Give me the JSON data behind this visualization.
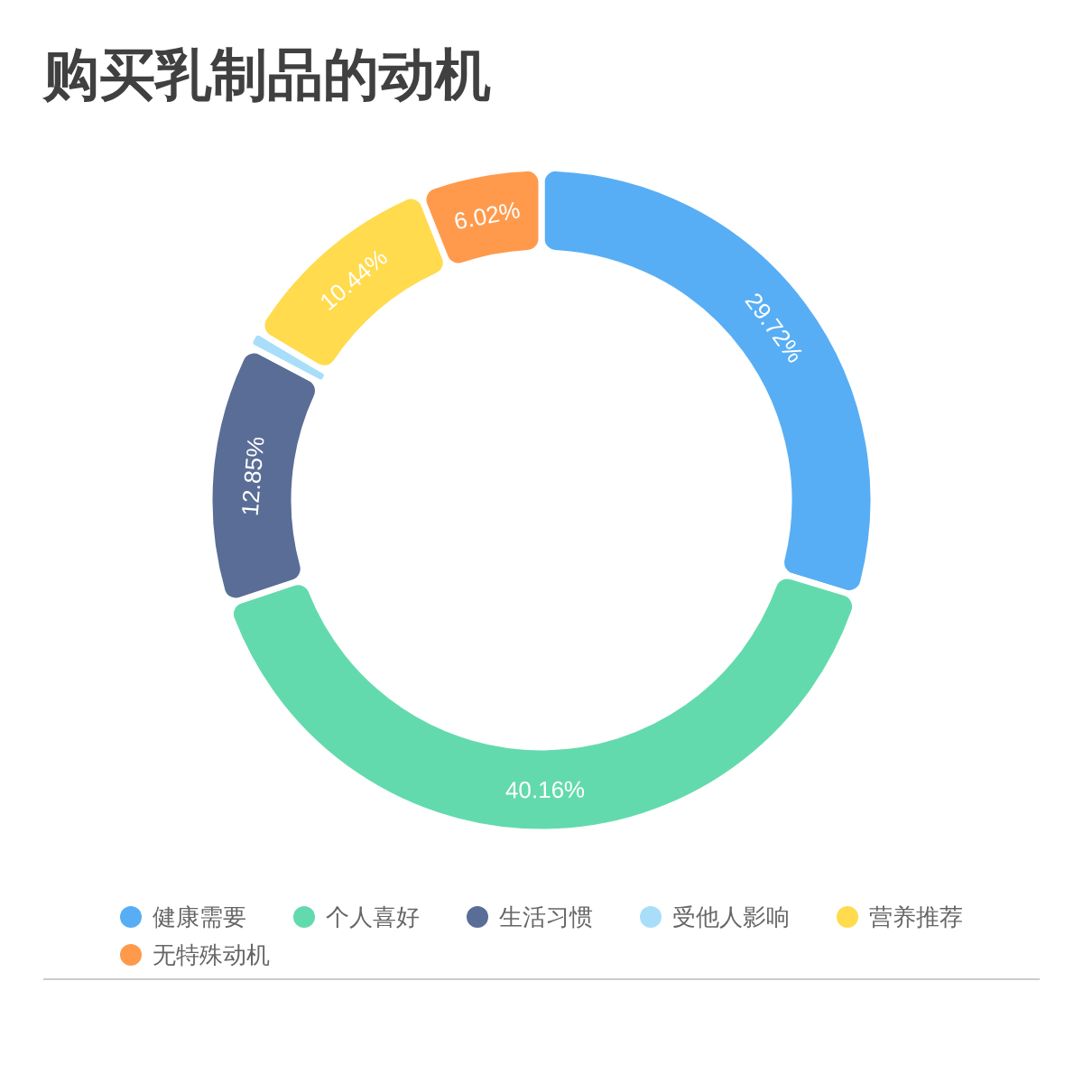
{
  "chart_data": {
    "type": "donut",
    "title": "购买乳制品的动机",
    "categories": [
      "健康需要",
      "个人喜好",
      "生活习惯",
      "受他人影响",
      "营养推荐",
      "无特殊动机"
    ],
    "values": [
      29.72,
      40.16,
      12.85,
      0.81,
      10.44,
      6.02
    ],
    "colors": [
      "#58aef5",
      "#63daad",
      "#5a6d96",
      "#a8defa",
      "#ffdb4d",
      "#ff9a4d"
    ],
    "value_labels": [
      "29.72%",
      "40.16%",
      "12.85%",
      null,
      "10.44%",
      "6.02%"
    ],
    "legend": "bottom"
  }
}
